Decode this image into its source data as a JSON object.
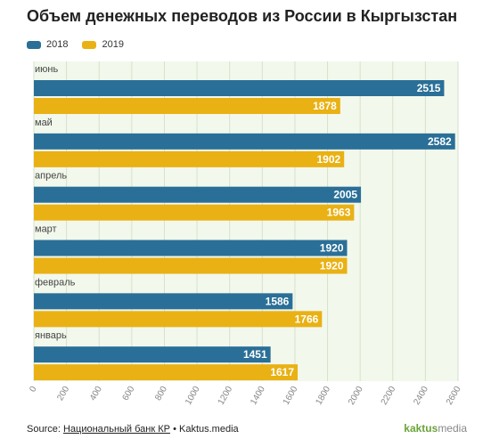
{
  "title": "Объем денежных переводов из России в Кыргызстан",
  "footer": {
    "source_prefix": "Source:",
    "source_link": "Национальный банк КР",
    "separator": "•",
    "site": "Kaktus.media"
  },
  "logo": {
    "part1": "kaktus",
    "part2": "",
    "part3": "media"
  },
  "colors": {
    "series_2018": "#2a6f97",
    "series_2019": "#e9b114",
    "plot_bg": "#f2f8ec"
  },
  "chart_data": {
    "type": "bar",
    "orientation": "horizontal",
    "categories": [
      "июнь",
      "май",
      "апрель",
      "март",
      "февраль",
      "январь"
    ],
    "series": [
      {
        "name": "2018",
        "values": [
          2515,
          2582,
          2005,
          1920,
          1586,
          1451
        ]
      },
      {
        "name": "2019",
        "values": [
          1878,
          1902,
          1963,
          1920,
          1766,
          1617
        ]
      }
    ],
    "xlim": [
      0,
      2600
    ],
    "xticks": [
      0,
      200,
      400,
      600,
      800,
      1000,
      1200,
      1400,
      1600,
      1800,
      2000,
      2200,
      2400,
      2600
    ],
    "xlabel": "",
    "ylabel": "",
    "legend_position": "top-left",
    "grid": true
  }
}
